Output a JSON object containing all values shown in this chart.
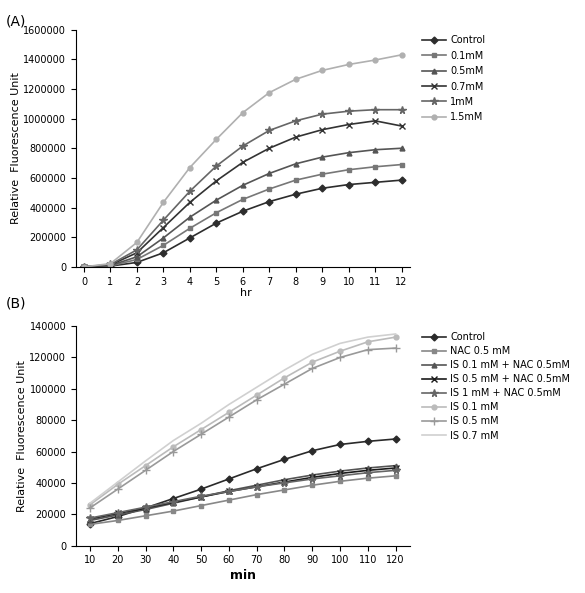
{
  "panel_A": {
    "title": "(A)",
    "xlabel": "hr",
    "ylabel": "Relative  Fluorescence Unit",
    "x": [
      0,
      1,
      2,
      3,
      4,
      5,
      6,
      7,
      8,
      9,
      10,
      11,
      12
    ],
    "series_order": [
      "Control",
      "0.1mM",
      "0.5mM",
      "0.7mM",
      "1mM",
      "1.5mM"
    ],
    "series": {
      "Control": {
        "color": "#2d2d2d",
        "marker": "D",
        "markersize": 4,
        "values": [
          0,
          5000,
          30000,
          95000,
          195000,
          295000,
          375000,
          440000,
          490000,
          530000,
          555000,
          570000,
          585000
        ]
      },
      "0.1mM": {
        "color": "#777777",
        "marker": "s",
        "markersize": 4,
        "values": [
          0,
          6000,
          50000,
          145000,
          260000,
          365000,
          455000,
          525000,
          585000,
          625000,
          655000,
          675000,
          690000
        ]
      },
      "0.5mM": {
        "color": "#555555",
        "marker": "^",
        "markersize": 4,
        "values": [
          0,
          9000,
          68000,
          195000,
          335000,
          450000,
          550000,
          630000,
          695000,
          740000,
          770000,
          790000,
          800000
        ]
      },
      "0.7mM": {
        "color": "#333333",
        "marker": "x",
        "markersize": 5,
        "values": [
          0,
          13000,
          95000,
          265000,
          435000,
          580000,
          705000,
          800000,
          875000,
          925000,
          960000,
          985000,
          950000
        ]
      },
      "1mM": {
        "color": "#666666",
        "marker": "*",
        "markersize": 6,
        "values": [
          0,
          16000,
          115000,
          315000,
          510000,
          680000,
          815000,
          920000,
          985000,
          1030000,
          1050000,
          1060000,
          1060000
        ]
      },
      "1.5mM": {
        "color": "#b0b0b0",
        "marker": "o",
        "markersize": 4,
        "values": [
          0,
          22000,
          165000,
          435000,
          670000,
          860000,
          1040000,
          1175000,
          1265000,
          1325000,
          1365000,
          1395000,
          1430000
        ]
      }
    },
    "ylim": [
      0,
      1600000
    ],
    "yticks": [
      0,
      200000,
      400000,
      600000,
      800000,
      1000000,
      1200000,
      1400000,
      1600000
    ],
    "xticks": [
      0,
      1,
      2,
      3,
      4,
      5,
      6,
      7,
      8,
      9,
      10,
      11,
      12
    ]
  },
  "panel_B": {
    "title": "(B)",
    "xlabel": "min",
    "ylabel": "Relative  Fluorescence Unit",
    "x": [
      10,
      20,
      30,
      40,
      50,
      60,
      70,
      80,
      90,
      100,
      110,
      120
    ],
    "series_order": [
      "Control",
      "NAC 0.5 mM",
      "IS 0.1 mM + NAC 0.5mM",
      "IS 0.5 mM + NAC 0.5mM",
      "IS 1 mM + NAC 0.5mM",
      "IS 0.1 mM",
      "IS 0.5 mM",
      "IS 0.7 mM"
    ],
    "series": {
      "Control": {
        "color": "#2a2a2a",
        "marker": "D",
        "markersize": 4,
        "values": [
          14000,
          18500,
          24000,
          30000,
          36000,
          42500,
          49000,
          55000,
          60500,
          64500,
          66500,
          68000
        ]
      },
      "NAC 0.5 mM": {
        "color": "#888888",
        "marker": "s",
        "markersize": 4,
        "values": [
          13500,
          16000,
          19000,
          22000,
          25500,
          29000,
          32500,
          35500,
          38500,
          41000,
          43000,
          44500
        ]
      },
      "IS 0.1 mM + NAC 0.5mM": {
        "color": "#555555",
        "marker": "^",
        "markersize": 4,
        "values": [
          16000,
          19500,
          23000,
          27000,
          31000,
          35000,
          38500,
          42000,
          45000,
          47500,
          49500,
          51000
        ]
      },
      "IS 0.5 mM + NAC 0.5mM": {
        "color": "#1a1a1a",
        "marker": "x",
        "markersize": 5,
        "values": [
          17000,
          20500,
          24000,
          27500,
          31000,
          34500,
          37500,
          40500,
          43500,
          46000,
          48000,
          49500
        ]
      },
      "IS 1 mM + NAC 0.5mM": {
        "color": "#666666",
        "marker": "*",
        "markersize": 6,
        "values": [
          17500,
          21000,
          24500,
          28000,
          31500,
          34500,
          37500,
          40000,
          42500,
          44500,
          46500,
          48000
        ]
      },
      "IS 0.1 mM": {
        "color": "#bbbbbb",
        "marker": "o",
        "markersize": 4,
        "values": [
          26000,
          39000,
          51000,
          63000,
          74000,
          85000,
          96000,
          107000,
          117000,
          124000,
          130000,
          133000
        ]
      },
      "IS 0.5 mM": {
        "color": "#999999",
        "marker": "+",
        "markersize": 6,
        "values": [
          24000,
          36000,
          48000,
          60000,
          71000,
          82000,
          93000,
          103000,
          113000,
          120000,
          125000,
          126000
        ]
      },
      "IS 0.7 mM": {
        "color": "#d0d0d0",
        "marker": "None",
        "markersize": 4,
        "values": [
          27000,
          40500,
          54000,
          67000,
          78000,
          90000,
          101000,
          112000,
          122000,
          129000,
          133000,
          135000
        ]
      }
    },
    "ylim": [
      0,
      140000
    ],
    "yticks": [
      0,
      20000,
      40000,
      60000,
      80000,
      100000,
      120000,
      140000
    ],
    "xticks": [
      10,
      20,
      30,
      40,
      50,
      60,
      70,
      80,
      90,
      100,
      110,
      120
    ]
  },
  "background_color": "#ffffff",
  "line_width": 1.2,
  "legend_fontsize": 7,
  "tick_fontsize": 7,
  "label_fontsize": 8,
  "panel_label_fontsize": 10
}
